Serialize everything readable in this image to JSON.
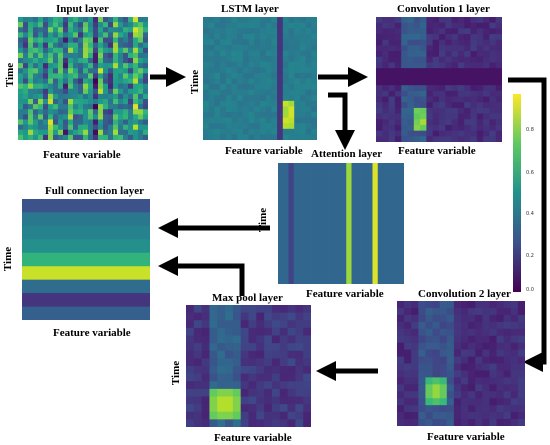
{
  "panels": {
    "input": {
      "title": "Input layer",
      "xlabel": "Feature variable",
      "ylabel": "Time"
    },
    "lstm": {
      "title": "LSTM layer",
      "xlabel": "Feature variable",
      "ylabel": "Time"
    },
    "conv1": {
      "title": "Convolution 1 layer",
      "xlabel": "Feature variable"
    },
    "attention": {
      "title": "Attention layer",
      "xlabel": "Feature variable",
      "ylabel": "Time"
    },
    "full": {
      "title": "Full connection layer",
      "xlabel": "Feature variable",
      "ylabel": "Time"
    },
    "maxpool": {
      "title": "Max pool layer",
      "xlabel": "Feature variable",
      "ylabel": "Time"
    },
    "conv2": {
      "title": "Convolution 2 layer",
      "xlabel": "Feature variable"
    }
  },
  "colorbar": {
    "colormap": "viridis",
    "ticks": [
      "0.8",
      "0.6",
      "0.4",
      "0.2",
      "0.0"
    ]
  }
}
